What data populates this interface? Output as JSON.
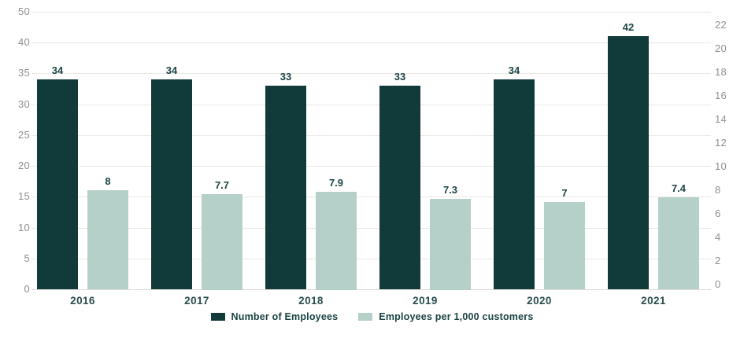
{
  "chart_data": {
    "type": "bar",
    "title": "",
    "categories": [
      "2016",
      "2017",
      "2018",
      "2019",
      "2020",
      "2021"
    ],
    "series": [
      {
        "name": "Number of Employees",
        "axis": "left",
        "color": "#113a3b",
        "values": [
          34,
          34,
          33,
          33,
          34,
          42
        ],
        "data_labels": [
          "34",
          "34",
          "33",
          "33",
          "34",
          "42"
        ]
      },
      {
        "name": "Employees per 1,000 customers",
        "axis": "right",
        "color": "#b4d0c8",
        "values": [
          8,
          7.7,
          7.9,
          7.3,
          7,
          7.4
        ],
        "data_labels": [
          "8",
          "7.7",
          "7.9",
          "7.3",
          "7",
          "7.4"
        ]
      }
    ],
    "left_axis": {
      "tick_labels": [
        "50",
        "40",
        "35",
        "30",
        "25",
        "20",
        "15",
        "10",
        "5",
        "0"
      ]
    },
    "right_axis": {
      "tick_labels": [
        "22",
        "20",
        "18",
        "16",
        "14",
        "12",
        "10",
        "8",
        "6",
        "4",
        "2",
        "0"
      ],
      "max": 22
    },
    "grid": true,
    "legend_position": "bottom"
  },
  "colors": {
    "dark_series": "#113a3b",
    "light_series": "#b4d0c8",
    "gridline": "#ebe9e4",
    "axis_line": "#dedbd5",
    "tick_text": "#8f8f8f",
    "label_text": "#1b4344"
  }
}
